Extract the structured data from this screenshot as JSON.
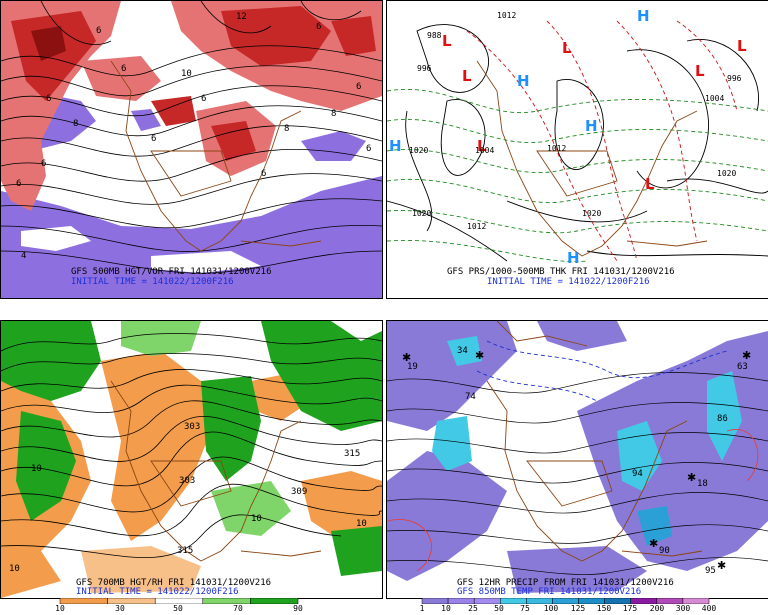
{
  "panels": [
    {
      "id": "hgt-vor",
      "caption_line1": "GFS 500MB HGT/VOR FRI 141031/1200V216",
      "caption_line2": "INITIAL TIME = 141022/1200F216",
      "contour_labels": [
        "6",
        "6",
        "12",
        "8",
        "6",
        "6",
        "6",
        "10",
        "8",
        "6",
        "6",
        "6",
        "6",
        "8",
        "6",
        "6",
        "4"
      ]
    },
    {
      "id": "prs-thk",
      "caption_line1": "GFS PRS/1000-500MB THK FRI 141031/1200V216",
      "caption_line2": "INITIAL TIME = 141022/1200F216",
      "highs": [
        "H",
        "H",
        "H",
        "H",
        "H"
      ],
      "lows": [
        "L",
        "L",
        "L",
        "L",
        "L",
        "L",
        "L"
      ],
      "contour_labels": [
        "1012",
        "988",
        "996",
        "1004",
        "1020",
        "1012",
        "1020",
        "1020",
        "1012",
        "1020",
        "996",
        "1004"
      ]
    },
    {
      "id": "hgt-rh",
      "caption_line1": "GFS 700MB HGT/RH FRI 141031/1200V216",
      "caption_line2": "INITIAL TIME = 141022/1200F216",
      "contour_labels": [
        "303",
        "315",
        "303",
        "309",
        "315",
        "10",
        "10",
        "10",
        "10"
      ],
      "colorbar_ticks": [
        "10",
        "30",
        "50",
        "70",
        "90"
      ],
      "colorbar_colors": [
        "#f39d4c",
        "#f7c089",
        "#ffffff",
        "#7fd46a",
        "#1fa31f"
      ]
    },
    {
      "id": "precip-temp",
      "caption_line1": "GFS 12HR PRECIP FROM FRI 141031/1200V216",
      "caption_line2": "GFS 850MB TEMP FRI 141031/1200V216",
      "contour_labels": [
        "19",
        "34",
        "74",
        "86",
        "63",
        "94",
        "18",
        "90",
        "95"
      ],
      "colorbar_ticks": [
        "1",
        "10",
        "25",
        "50",
        "75",
        "100",
        "125",
        "150",
        "175",
        "200",
        "300",
        "400"
      ],
      "colorbar_colors": [
        "#8a7ad8",
        "#9a82e8",
        "#a38cef",
        "#41c9e6",
        "#3ab8e2",
        "#2aa0d6",
        "#1c8ec8",
        "#1672b0",
        "#8a1aa2",
        "#b04ab8",
        "#d68ad4"
      ]
    }
  ]
}
